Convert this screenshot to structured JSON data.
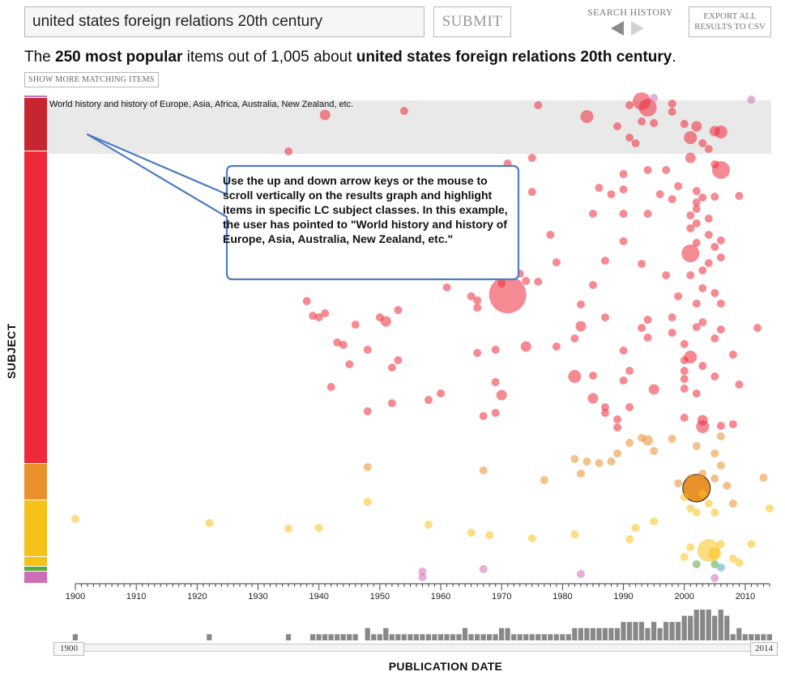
{
  "search": {
    "value": "united states foreign relations 20th century"
  },
  "submit_label": "SUBMIT",
  "search_history": {
    "label": "SEARCH HISTORY"
  },
  "export": {
    "line1": "EXPORT ALL",
    "line2": "RESULTS TO CSV"
  },
  "headline": {
    "prefix": "The ",
    "bold1": "250 most popular",
    "middle": " items out of 1,005 about ",
    "bold2": "united states foreign relations 20th century",
    "suffix": "."
  },
  "show_more_label": "SHOW MORE MATCHING ITEMS",
  "subject_axis_label": "SUBJECT",
  "highlight": {
    "label": "World history and history of Europe, Asia, Africa, Australia, New Zealand, etc."
  },
  "callout": {
    "text": "Use the up and down arrow keys or the mouse to scroll vertically on the results graph and highlight items in specific LC subject classes. In this example, the user has pointed to \"World history and history of Europe, Asia, Australia, New Zealand, etc.\""
  },
  "date_slider": {
    "start": "1900",
    "end": "2014"
  },
  "x_axis_title": "PUBLICATION DATE",
  "colors": {
    "red": "#ee2a3a",
    "dark_red": "#c8262e",
    "orange": "#e8902a",
    "yellow": "#f5c21a",
    "green": "#5aaa3a",
    "blue": "#4fa3d9",
    "pink": "#cf6eb8"
  },
  "chart_data": {
    "type": "scatter",
    "xlabel": "PUBLICATION DATE",
    "ylabel": "SUBJECT",
    "xlim": [
      1900,
      2014
    ],
    "x_ticks": [
      1900,
      1910,
      1920,
      1930,
      1940,
      1950,
      1960,
      1970,
      1980,
      1990,
      2000,
      2010
    ],
    "subject_bands": [
      {
        "color": "pink",
        "share": 0.005
      },
      {
        "color": "dark_red",
        "share": 0.11
      },
      {
        "color": "red",
        "share": 0.64
      },
      {
        "color": "orange",
        "share": 0.075
      },
      {
        "color": "yellow",
        "share": 0.115
      },
      {
        "color": "yellow",
        "share": 0.02
      },
      {
        "color": "green",
        "share": 0.01
      },
      {
        "color": "pink",
        "share": 0.025
      }
    ],
    "points": [
      [
        1941,
        142,
        3,
        "red"
      ],
      [
        1954,
        137,
        2,
        "red"
      ],
      [
        1976,
        130,
        2,
        "red"
      ],
      [
        1984,
        144,
        4,
        "red"
      ],
      [
        1991,
        130,
        2,
        "red"
      ],
      [
        1993,
        125,
        5,
        "red"
      ],
      [
        1994,
        133,
        5,
        "red"
      ],
      [
        1998,
        128,
        2,
        "red"
      ],
      [
        1998,
        138,
        2,
        "red"
      ],
      [
        1989,
        156,
        2,
        "red"
      ],
      [
        1993,
        150,
        2,
        "red"
      ],
      [
        1995,
        152,
        2,
        "red"
      ],
      [
        2000,
        153,
        2,
        "red"
      ],
      [
        2002,
        156,
        3,
        "red"
      ],
      [
        2005,
        162,
        3,
        "red"
      ],
      [
        2006,
        163,
        4,
        "red"
      ],
      [
        2001,
        170,
        4,
        "red"
      ],
      [
        2003,
        177,
        2,
        "red"
      ],
      [
        2004,
        184,
        2,
        "red"
      ],
      [
        1991,
        170,
        2,
        "red"
      ],
      [
        1992,
        177,
        2,
        "red"
      ],
      [
        1935,
        187,
        2,
        "red"
      ],
      [
        1975,
        195,
        2,
        "red"
      ],
      [
        1971,
        202,
        2,
        "red"
      ],
      [
        1972,
        210,
        2,
        "red"
      ],
      [
        2001,
        195,
        3,
        "red"
      ],
      [
        2005,
        203,
        2,
        "red"
      ],
      [
        2006,
        210,
        5,
        "red"
      ],
      [
        1990,
        215,
        2,
        "red"
      ],
      [
        1994,
        210,
        2,
        "red"
      ],
      [
        1997,
        210,
        2,
        "red"
      ],
      [
        1999,
        230,
        2,
        "red"
      ],
      [
        2002,
        236,
        2,
        "red"
      ],
      [
        1986,
        232,
        2,
        "red"
      ],
      [
        1988,
        240,
        2,
        "red"
      ],
      [
        1990,
        234,
        2,
        "red"
      ],
      [
        1996,
        240,
        2,
        "red"
      ],
      [
        2003,
        244,
        2,
        "red"
      ],
      [
        2005,
        243,
        2,
        "red"
      ],
      [
        2009,
        242,
        2,
        "red"
      ],
      [
        1975,
        237,
        2,
        "red"
      ],
      [
        1998,
        246,
        2,
        "red"
      ],
      [
        2002,
        250,
        2,
        "red"
      ],
      [
        2002,
        258,
        2,
        "red"
      ],
      [
        2001,
        266,
        2,
        "red"
      ],
      [
        2002,
        276,
        2,
        "red"
      ],
      [
        2004,
        270,
        2,
        "red"
      ],
      [
        1985,
        264,
        2,
        "red"
      ],
      [
        1990,
        264,
        2,
        "red"
      ],
      [
        1994,
        264,
        2,
        "red"
      ],
      [
        1978,
        290,
        2,
        "red"
      ],
      [
        2001,
        282,
        2,
        "red"
      ],
      [
        2004,
        290,
        2,
        "red"
      ],
      [
        2006,
        297,
        2,
        "red"
      ],
      [
        1990,
        298,
        2,
        "red"
      ],
      [
        2002,
        300,
        2,
        "red"
      ],
      [
        2001,
        313,
        5,
        "red"
      ],
      [
        2005,
        305,
        2,
        "red"
      ],
      [
        2006,
        318,
        2,
        "red"
      ],
      [
        2004,
        325,
        2,
        "red"
      ],
      [
        1987,
        322,
        2,
        "red"
      ],
      [
        1972,
        328,
        2,
        "red"
      ],
      [
        1973,
        338,
        2,
        "red"
      ],
      [
        1974,
        347,
        2,
        "red"
      ],
      [
        1976,
        348,
        2,
        "red"
      ],
      [
        1979,
        324,
        2,
        "red"
      ],
      [
        1993,
        326,
        2,
        "red"
      ],
      [
        1997,
        340,
        2,
        "red"
      ],
      [
        2001,
        340,
        2,
        "red"
      ],
      [
        2003,
        334,
        2,
        "red"
      ],
      [
        1985,
        352,
        2,
        "red"
      ],
      [
        1983,
        376,
        2,
        "red"
      ],
      [
        1971,
        364,
        9,
        "red"
      ],
      [
        1970,
        350,
        2,
        "red"
      ],
      [
        1965,
        366,
        2,
        "red"
      ],
      [
        1961,
        355,
        2,
        "red"
      ],
      [
        1966,
        380,
        2,
        "red"
      ],
      [
        1966,
        371,
        2,
        "red"
      ],
      [
        2003,
        356,
        2,
        "red"
      ],
      [
        2005,
        362,
        2,
        "red"
      ],
      [
        1999,
        366,
        2,
        "red"
      ],
      [
        2002,
        375,
        2,
        "red"
      ],
      [
        2006,
        375,
        2,
        "red"
      ],
      [
        1938,
        372,
        2,
        "red"
      ],
      [
        1939,
        390,
        2,
        "red"
      ],
      [
        1940,
        392,
        2,
        "red"
      ],
      [
        1941,
        387,
        2,
        "red"
      ],
      [
        1946,
        401,
        2,
        "red"
      ],
      [
        1950,
        392,
        2,
        "red"
      ],
      [
        1951,
        397,
        3,
        "red"
      ],
      [
        1953,
        383,
        2,
        "red"
      ],
      [
        1983,
        403,
        3,
        "red"
      ],
      [
        1993,
        405,
        2,
        "red"
      ],
      [
        1987,
        392,
        2,
        "red"
      ],
      [
        1994,
        395,
        2,
        "red"
      ],
      [
        2006,
        407,
        2,
        "red"
      ],
      [
        2002,
        404,
        2,
        "red"
      ],
      [
        2003,
        398,
        2,
        "red"
      ],
      [
        1998,
        392,
        2,
        "red"
      ],
      [
        2012,
        405,
        2,
        "red"
      ],
      [
        1943,
        423,
        2,
        "red"
      ],
      [
        1944,
        426,
        2,
        "red"
      ],
      [
        1948,
        432,
        2,
        "red"
      ],
      [
        1982,
        418,
        2,
        "red"
      ],
      [
        1979,
        428,
        2,
        "red"
      ],
      [
        1994,
        417,
        2,
        "red"
      ],
      [
        1998,
        411,
        2,
        "red"
      ],
      [
        2000,
        425,
        2,
        "red"
      ],
      [
        2001,
        441,
        4,
        "red"
      ],
      [
        2005,
        418,
        2,
        "red"
      ],
      [
        1990,
        433,
        2,
        "red"
      ],
      [
        1974,
        428,
        3,
        "red"
      ],
      [
        1969,
        432,
        2,
        "red"
      ],
      [
        1966,
        436,
        2,
        "red"
      ],
      [
        1953,
        445,
        2,
        "red"
      ],
      [
        1952,
        454,
        2,
        "red"
      ],
      [
        1945,
        450,
        2,
        "red"
      ],
      [
        2000,
        445,
        2,
        "red"
      ],
      [
        2003,
        452,
        2,
        "red"
      ],
      [
        2008,
        438,
        2,
        "red"
      ],
      [
        2000,
        458,
        2,
        "red"
      ],
      [
        1991,
        458,
        2,
        "red"
      ],
      [
        1985,
        464,
        2,
        "red"
      ],
      [
        1982,
        465,
        4,
        "red"
      ],
      [
        2000,
        468,
        2,
        "red"
      ],
      [
        2005,
        465,
        2,
        "red"
      ],
      [
        2009,
        475,
        2,
        "red"
      ],
      [
        1990,
        470,
        2,
        "red"
      ],
      [
        1969,
        472,
        2,
        "red"
      ],
      [
        1942,
        478,
        2,
        "red"
      ],
      [
        1952,
        498,
        2,
        "red"
      ],
      [
        1958,
        494,
        2,
        "red"
      ],
      [
        1960,
        486,
        2,
        "red"
      ],
      [
        1970,
        488,
        3,
        "red"
      ],
      [
        1985,
        492,
        3,
        "red"
      ],
      [
        1991,
        503,
        2,
        "red"
      ],
      [
        1987,
        503,
        2,
        "red"
      ],
      [
        1995,
        481,
        3,
        "red"
      ],
      [
        2000,
        480,
        2,
        "red"
      ],
      [
        2002,
        486,
        2,
        "red"
      ],
      [
        1948,
        508,
        2,
        "red"
      ],
      [
        1967,
        514,
        2,
        "red"
      ],
      [
        1969,
        510,
        2,
        "red"
      ],
      [
        1987,
        510,
        2,
        "red"
      ],
      [
        1989,
        518,
        2,
        "red"
      ],
      [
        1989,
        528,
        2,
        "red"
      ],
      [
        2003,
        519,
        3,
        "red"
      ],
      [
        2003,
        527,
        4,
        "red"
      ],
      [
        2006,
        526,
        2,
        "red"
      ],
      [
        2008,
        524,
        2,
        "red"
      ],
      [
        2000,
        516,
        2,
        "red"
      ],
      [
        1993,
        541,
        2,
        "orange"
      ],
      [
        1991,
        547,
        2,
        "orange"
      ],
      [
        1994,
        544,
        3,
        "orange"
      ],
      [
        1998,
        542,
        2,
        "orange"
      ],
      [
        2006,
        539,
        2,
        "orange"
      ],
      [
        2002,
        551,
        2,
        "orange"
      ],
      [
        2005,
        560,
        2,
        "orange"
      ],
      [
        1989,
        560,
        2,
        "orange"
      ],
      [
        1995,
        557,
        2,
        "orange"
      ],
      [
        1982,
        567,
        2,
        "orange"
      ],
      [
        1984,
        570,
        2,
        "orange"
      ],
      [
        1986,
        572,
        2,
        "orange"
      ],
      [
        1988,
        570,
        2,
        "orange"
      ],
      [
        1948,
        577,
        2,
        "orange"
      ],
      [
        1967,
        581,
        2,
        "orange"
      ],
      [
        1983,
        585,
        2,
        "orange"
      ],
      [
        2003,
        585,
        2,
        "orange"
      ],
      [
        2006,
        575,
        2,
        "orange"
      ],
      [
        2005,
        591,
        2,
        "orange"
      ],
      [
        2007,
        600,
        2,
        "orange"
      ],
      [
        2001,
        591,
        2,
        "orange"
      ],
      [
        1999,
        597,
        2,
        "orange"
      ],
      [
        2008,
        622,
        2,
        "orange"
      ],
      [
        2013,
        590,
        2,
        "orange"
      ],
      [
        1977,
        593,
        2,
        "orange"
      ],
      [
        2002,
        603,
        4,
        "dark_orange"
      ],
      [
        2003,
        610,
        2,
        "yellow"
      ],
      [
        2004,
        622,
        2,
        "yellow"
      ],
      [
        2005,
        633,
        2,
        "yellow"
      ],
      [
        2001,
        628,
        2,
        "yellow"
      ],
      [
        2000,
        614,
        2,
        "yellow"
      ],
      [
        1948,
        620,
        2,
        "yellow"
      ],
      [
        1900,
        641,
        2,
        "yellow"
      ],
      [
        1922,
        646,
        2,
        "yellow"
      ],
      [
        1935,
        653,
        2,
        "yellow"
      ],
      [
        1940,
        652,
        2,
        "yellow"
      ],
      [
        1958,
        648,
        2,
        "yellow"
      ],
      [
        1965,
        658,
        2,
        "yellow"
      ],
      [
        1968,
        661,
        2,
        "yellow"
      ],
      [
        1975,
        665,
        2,
        "yellow"
      ],
      [
        1982,
        660,
        2,
        "yellow"
      ],
      [
        1991,
        666,
        2,
        "yellow"
      ],
      [
        1995,
        644,
        2,
        "yellow"
      ],
      [
        2002,
        633,
        2,
        "yellow"
      ],
      [
        2014,
        628,
        2,
        "yellow"
      ],
      [
        2011,
        672,
        2,
        "yellow"
      ],
      [
        1992,
        652,
        2,
        "yellow"
      ],
      [
        2000,
        688,
        2,
        "yellow"
      ],
      [
        2004,
        680,
        6,
        "yellow"
      ],
      [
        2005,
        684,
        4,
        "yellow"
      ],
      [
        2008,
        690,
        2,
        "yellow"
      ],
      [
        2001,
        676,
        2,
        "yellow"
      ],
      [
        2006,
        672,
        2,
        "yellow"
      ],
      [
        2009,
        695,
        2,
        "yellow"
      ],
      [
        2002,
        697,
        2,
        "green"
      ],
      [
        2005,
        697,
        2,
        "green"
      ],
      [
        2006,
        701,
        2,
        "blue"
      ],
      [
        1995,
        121,
        2,
        "pink"
      ],
      [
        2011,
        123,
        2,
        "pink"
      ],
      [
        1957,
        706,
        2,
        "pink"
      ],
      [
        1957,
        713,
        2,
        "pink"
      ],
      [
        1967,
        703,
        2,
        "pink"
      ],
      [
        1983,
        709,
        2,
        "pink"
      ],
      [
        2005,
        714,
        2,
        "pink"
      ]
    ],
    "histogram": [
      1,
      0,
      0,
      0,
      0,
      0,
      0,
      0,
      0,
      0,
      0,
      0,
      0,
      0,
      0,
      0,
      0,
      0,
      0,
      0,
      0,
      0,
      1,
      0,
      0,
      0,
      0,
      0,
      0,
      0,
      0,
      0,
      0,
      0,
      0,
      1,
      0,
      0,
      0,
      1,
      1,
      1,
      1,
      1,
      1,
      1,
      1,
      0,
      2,
      1,
      1,
      2,
      1,
      1,
      1,
      1,
      1,
      1,
      1,
      1,
      1,
      1,
      1,
      1,
      2,
      1,
      1,
      1,
      1,
      1,
      2,
      2,
      1,
      1,
      1,
      1,
      1,
      1,
      1,
      1,
      1,
      1,
      2,
      2,
      2,
      2,
      2,
      2,
      2,
      2,
      3,
      3,
      3,
      3,
      2,
      3,
      2,
      3,
      3,
      3,
      4,
      4,
      5,
      5,
      5,
      4,
      5,
      4,
      1,
      2,
      1,
      1,
      1,
      1,
      1
    ]
  }
}
